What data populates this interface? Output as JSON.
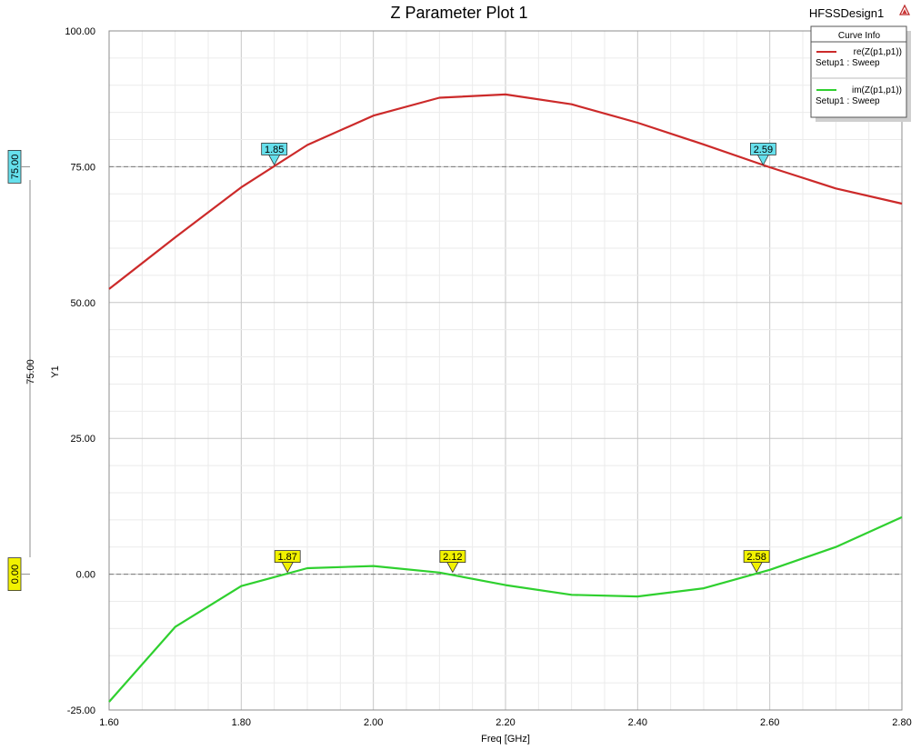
{
  "header": {
    "title": "Z Parameter Plot 1",
    "design_name": "HFSSDesign1",
    "logo_icon": "ansys-logo-icon"
  },
  "legend": {
    "title": "Curve Info",
    "entries": [
      {
        "name": "re(Z(p1,p1))",
        "sub": "Setup1 : Sweep",
        "color": "#cc2a2a"
      },
      {
        "name": "im(Z(p1,p1))",
        "sub": "Setup1 : Sweep",
        "color": "#2fd02f"
      }
    ]
  },
  "chart_data": {
    "type": "line",
    "xlabel": "Freq [GHz]",
    "ylabel": "Y1",
    "xlim": [
      1.6,
      2.8
    ],
    "ylim": [
      -25,
      100
    ],
    "grid": true,
    "legend_position": "top-right",
    "x_ticks": [
      "1.60",
      "1.80",
      "2.00",
      "2.20",
      "2.40",
      "2.60",
      "2.80"
    ],
    "y_ticks": [
      "-25.00",
      "0.00",
      "25.00",
      "50.00",
      "75.00",
      "100.00"
    ],
    "series": [
      {
        "name": "re(Z(p1,p1))",
        "color": "#cc2a2a",
        "x": [
          1.6,
          1.7,
          1.8,
          1.9,
          2.0,
          2.1,
          2.2,
          2.3,
          2.4,
          2.5,
          2.6,
          2.7,
          2.8
        ],
        "y": [
          52.5,
          62,
          71.2,
          79,
          84.4,
          87.7,
          88.3,
          86.5,
          83.1,
          79.1,
          74.9,
          71,
          68.2
        ]
      },
      {
        "name": "im(Z(p1,p1))",
        "color": "#2fd02f",
        "x": [
          1.6,
          1.7,
          1.8,
          1.9,
          2.0,
          2.1,
          2.2,
          2.3,
          2.4,
          2.5,
          2.6,
          2.7,
          2.8
        ],
        "y": [
          -23.5,
          -9.7,
          -2.2,
          1.1,
          1.5,
          0.3,
          -2,
          -3.8,
          -4.1,
          -2.6,
          0.8,
          5,
          10.5
        ]
      }
    ],
    "reference_lines": [
      {
        "y": 75,
        "label": "75.00",
        "color": "#66e0ec"
      },
      {
        "y": 0,
        "label": "0.00",
        "color": "#f2f200"
      }
    ],
    "secondary_axis_value": "75.00",
    "markers": [
      {
        "label": "1.85",
        "x": 1.85,
        "y": 75,
        "color": "#66e0ec"
      },
      {
        "label": "2.59",
        "x": 2.59,
        "y": 75,
        "color": "#66e0ec"
      },
      {
        "label": "1.87",
        "x": 1.87,
        "y": 0,
        "color": "#f2f200"
      },
      {
        "label": "2.12",
        "x": 2.12,
        "y": 0,
        "color": "#f2f200"
      },
      {
        "label": "2.58",
        "x": 2.58,
        "y": 0,
        "color": "#f2f200"
      }
    ]
  }
}
